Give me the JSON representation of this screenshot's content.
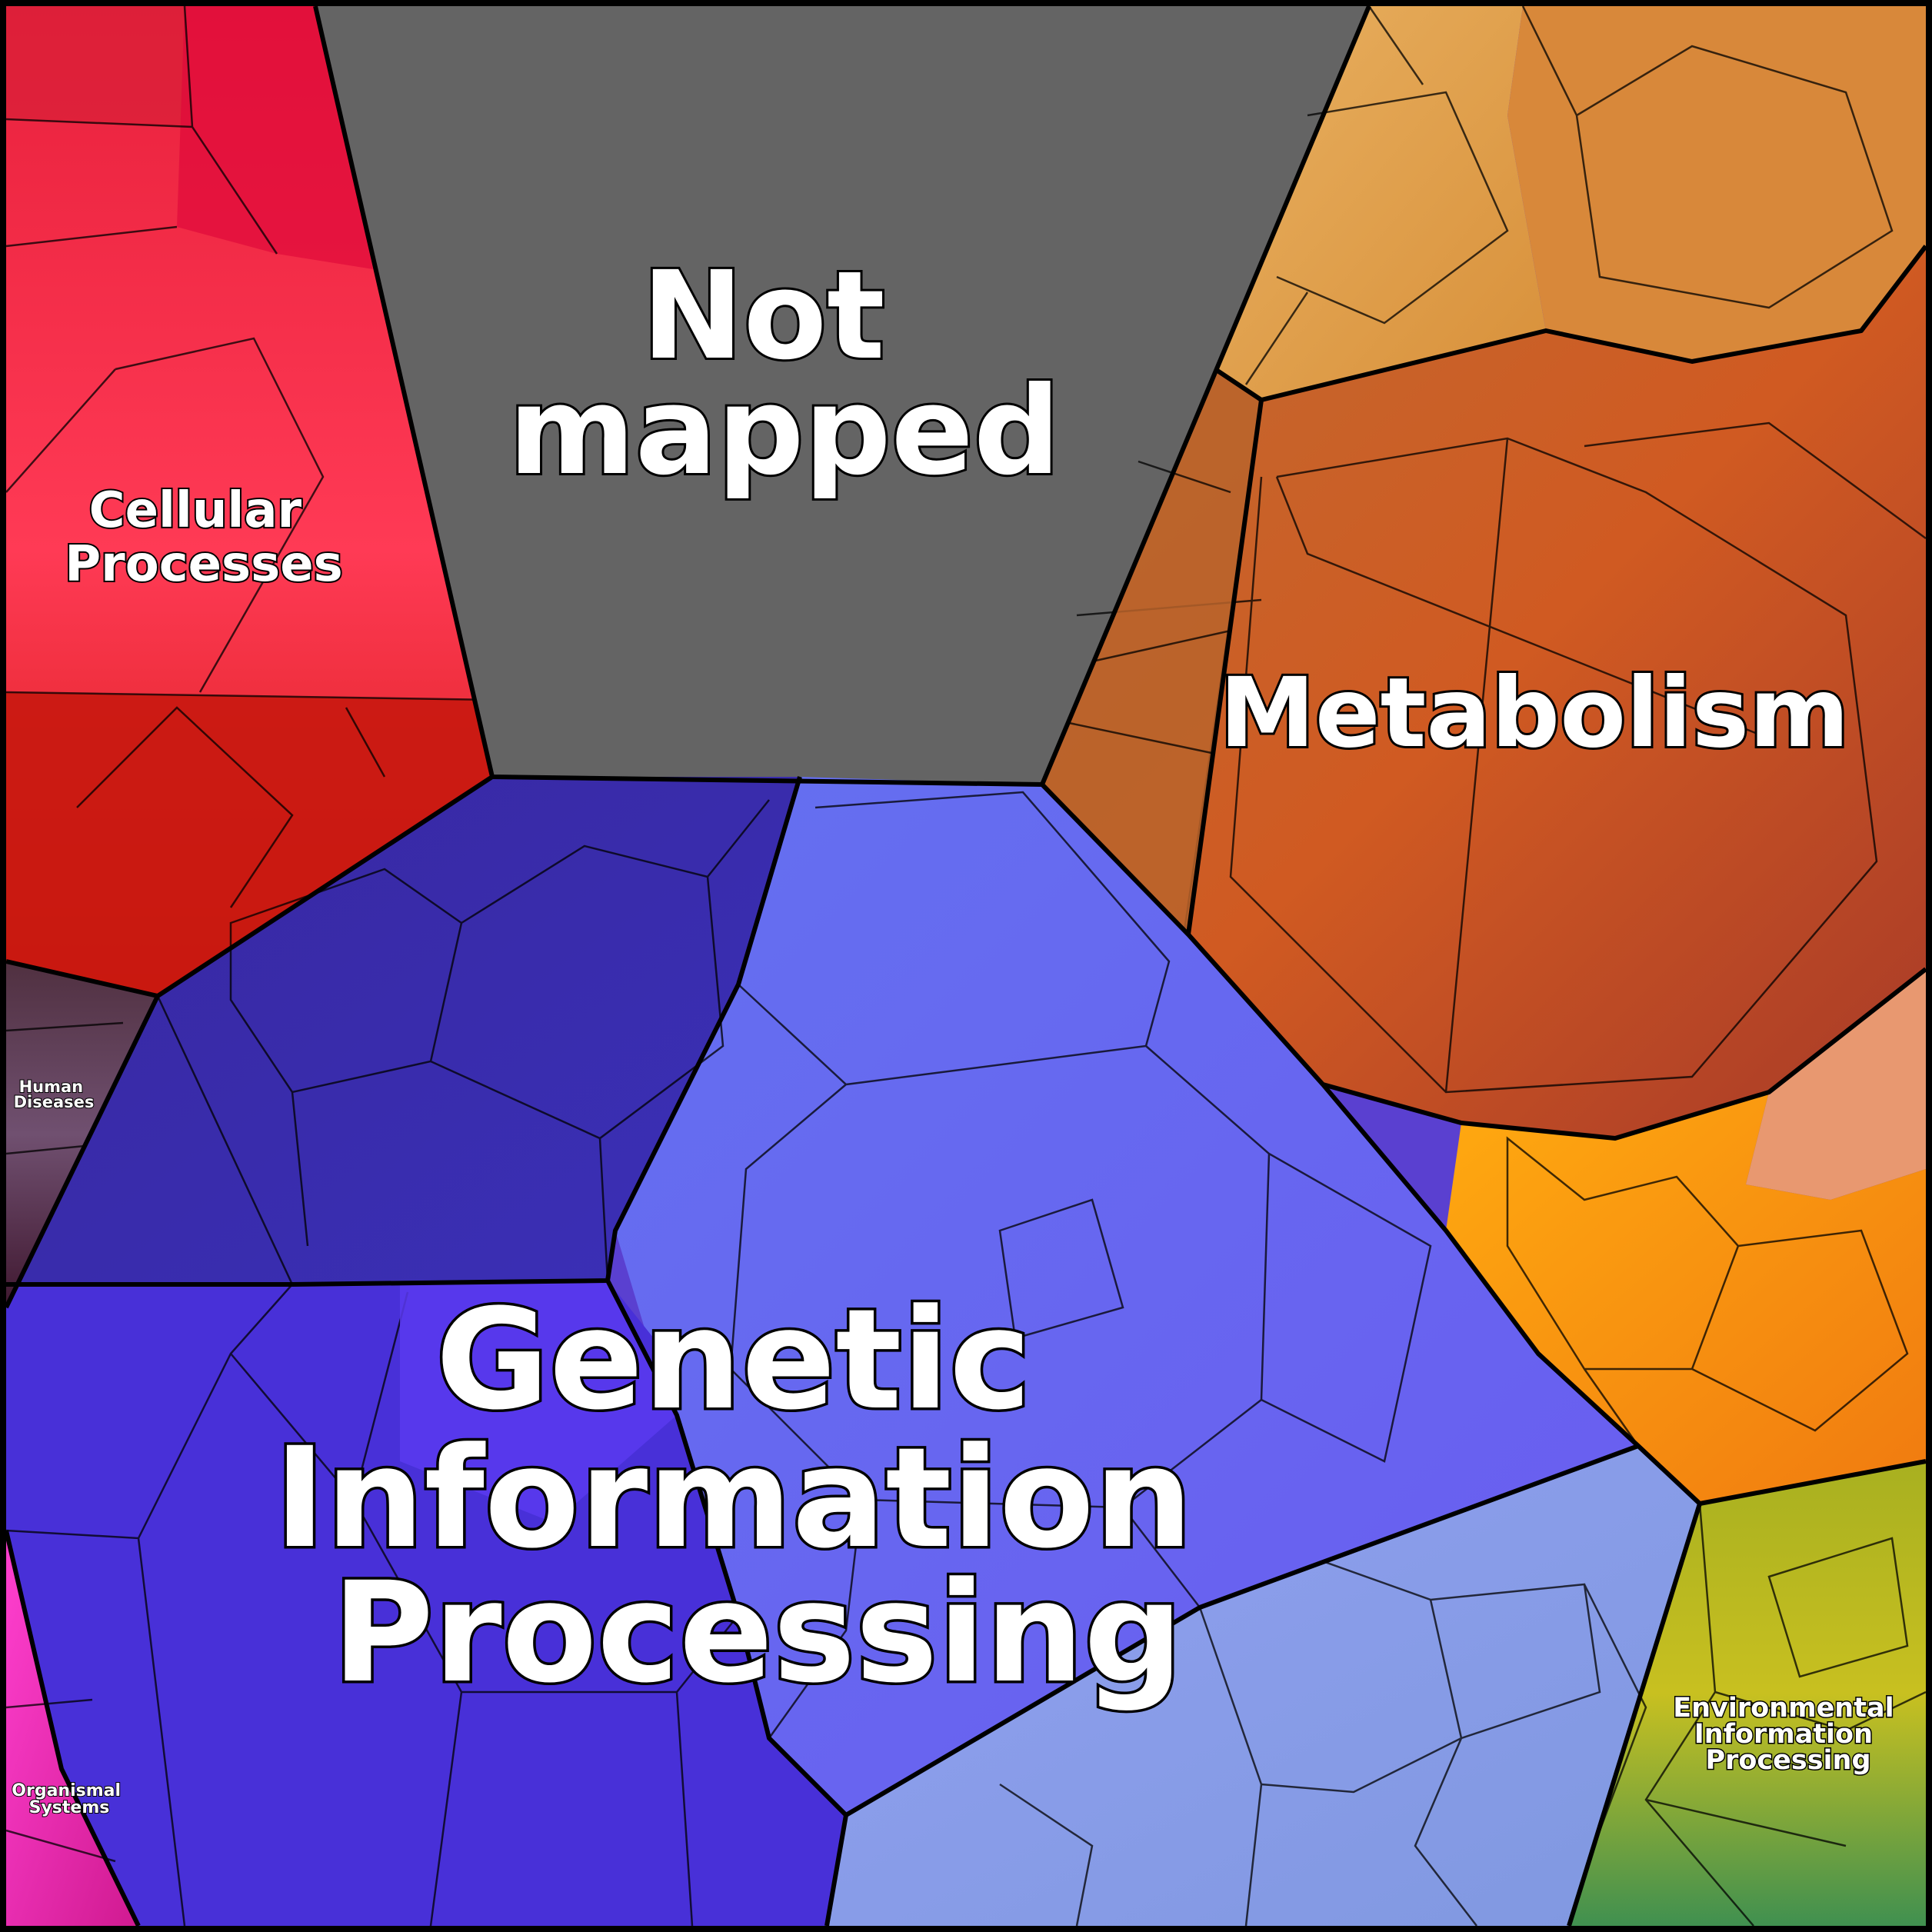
{
  "diagram": {
    "type": "voronoi-treemap",
    "regions": [
      {
        "id": "not-mapped",
        "lines": [
          "Not",
          "mapped"
        ],
        "color": "#646464"
      },
      {
        "id": "cellular-processes",
        "lines": [
          "Cellular",
          "Processes"
        ],
        "color": "#ff3050"
      },
      {
        "id": "metabolism",
        "lines": [
          "Metabolism"
        ],
        "color": "#c85a28"
      },
      {
        "id": "genetic-information-processing",
        "lines": [
          "Genetic",
          "Information",
          "Processing"
        ],
        "color": "#4a3ad8"
      },
      {
        "id": "human-diseases",
        "lines": [
          "Human",
          "Diseases"
        ],
        "color": "#5a3a5a"
      },
      {
        "id": "organismal-systems",
        "lines": [
          "Organismal",
          "Systems"
        ],
        "color": "#e020b8"
      },
      {
        "id": "environmental-information-processing",
        "lines": [
          "Environmental",
          "Information",
          "Processing"
        ],
        "color": "#80a828"
      }
    ]
  }
}
